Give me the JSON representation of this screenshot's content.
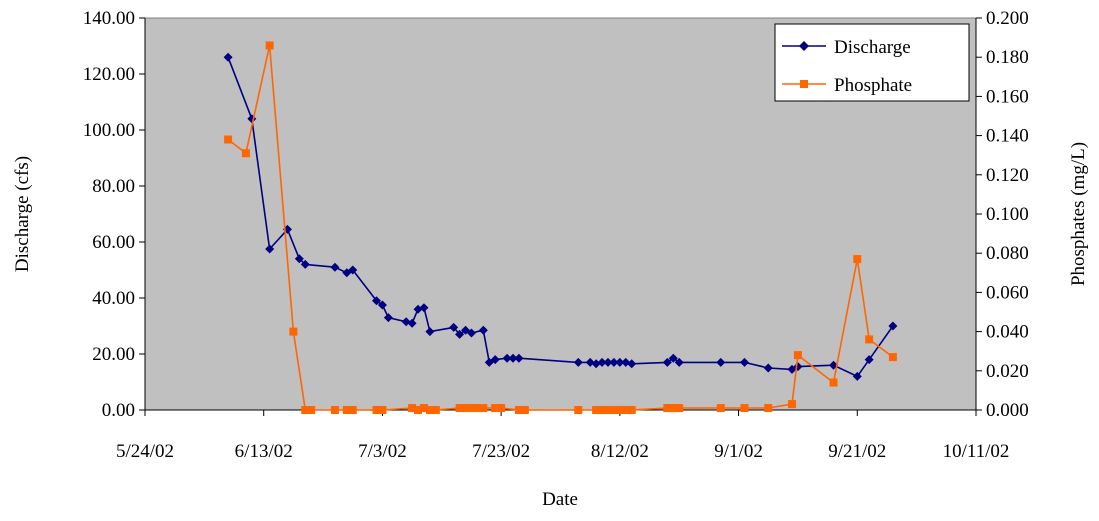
{
  "chart_data": {
    "type": "line",
    "title": "",
    "xlabel": "Date",
    "ylabel": "Discharge (cfs)",
    "y2label": "Phosphates (mg/L)",
    "x_ticks": [
      "5/24/02",
      "6/13/02",
      "7/3/02",
      "7/23/02",
      "8/12/02",
      "9/1/02",
      "9/21/02",
      "10/11/02"
    ],
    "xlim": [
      "2002-05-24",
      "2002-10-11"
    ],
    "ylim": [
      0,
      140
    ],
    "y_ticks": [
      "0.00",
      "20.00",
      "40.00",
      "60.00",
      "80.00",
      "100.00",
      "120.00",
      "140.00"
    ],
    "y2lim": [
      0,
      0.2
    ],
    "y2_ticks": [
      "0.000",
      "0.020",
      "0.040",
      "0.060",
      "0.080",
      "0.100",
      "0.120",
      "0.140",
      "0.160",
      "0.180",
      "0.200"
    ],
    "plot_background": "#c0c0c0",
    "grid": false,
    "legend_position": "top-right",
    "series": [
      {
        "name": "Discharge",
        "axis": "left",
        "color": "#000080",
        "marker": "diamond",
        "points": [
          [
            "2002-06-07",
            126.0
          ],
          [
            "2002-06-11",
            104.0
          ],
          [
            "2002-06-14",
            57.5
          ],
          [
            "2002-06-17",
            64.5
          ],
          [
            "2002-06-19",
            54.0
          ],
          [
            "2002-06-20",
            52.0
          ],
          [
            "2002-06-25",
            51.0
          ],
          [
            "2002-06-27",
            49.0
          ],
          [
            "2002-06-28",
            50.0
          ],
          [
            "2002-07-02",
            39.0
          ],
          [
            "2002-07-03",
            37.5
          ],
          [
            "2002-07-04",
            33.0
          ],
          [
            "2002-07-07",
            31.5
          ],
          [
            "2002-07-08",
            31.0
          ],
          [
            "2002-07-09",
            36.0
          ],
          [
            "2002-07-10",
            36.5
          ],
          [
            "2002-07-11",
            28.0
          ],
          [
            "2002-07-15",
            29.5
          ],
          [
            "2002-07-16",
            27.0
          ],
          [
            "2002-07-17",
            28.5
          ],
          [
            "2002-07-18",
            27.5
          ],
          [
            "2002-07-20",
            28.5
          ],
          [
            "2002-07-21",
            17.0
          ],
          [
            "2002-07-22",
            18.0
          ],
          [
            "2002-07-24",
            18.5
          ],
          [
            "2002-07-25",
            18.5
          ],
          [
            "2002-07-26",
            18.5
          ],
          [
            "2002-08-05",
            17.0
          ],
          [
            "2002-08-07",
            17.0
          ],
          [
            "2002-08-08",
            16.5
          ],
          [
            "2002-08-09",
            17.0
          ],
          [
            "2002-08-10",
            17.0
          ],
          [
            "2002-08-11",
            17.0
          ],
          [
            "2002-08-12",
            17.0
          ],
          [
            "2002-08-13",
            17.0
          ],
          [
            "2002-08-14",
            16.5
          ],
          [
            "2002-08-20",
            17.0
          ],
          [
            "2002-08-21",
            18.5
          ],
          [
            "2002-08-22",
            17.0
          ],
          [
            "2002-08-29",
            17.0
          ],
          [
            "2002-09-02",
            17.0
          ],
          [
            "2002-09-06",
            15.0
          ],
          [
            "2002-09-10",
            14.5
          ],
          [
            "2002-09-11",
            15.5
          ],
          [
            "2002-09-17",
            16.0
          ],
          [
            "2002-09-21",
            12.0
          ],
          [
            "2002-09-23",
            18.0
          ],
          [
            "2002-09-27",
            30.0
          ]
        ]
      },
      {
        "name": "Phosphate",
        "axis": "right",
        "color": "#ff6600",
        "marker": "square",
        "points": [
          [
            "2002-06-07",
            0.138
          ],
          [
            "2002-06-10",
            0.131
          ],
          [
            "2002-06-14",
            0.186
          ],
          [
            "2002-06-18",
            0.04
          ],
          [
            "2002-06-20",
            0.0
          ],
          [
            "2002-06-21",
            0.0
          ],
          [
            "2002-06-25",
            0.0
          ],
          [
            "2002-06-27",
            0.0
          ],
          [
            "2002-06-28",
            0.0
          ],
          [
            "2002-07-02",
            0.0
          ],
          [
            "2002-07-03",
            0.0
          ],
          [
            "2002-07-08",
            0.001
          ],
          [
            "2002-07-09",
            0.0
          ],
          [
            "2002-07-10",
            0.001
          ],
          [
            "2002-07-11",
            0.0
          ],
          [
            "2002-07-12",
            0.0
          ],
          [
            "2002-07-16",
            0.001
          ],
          [
            "2002-07-17",
            0.001
          ],
          [
            "2002-07-18",
            0.001
          ],
          [
            "2002-07-19",
            0.001
          ],
          [
            "2002-07-20",
            0.001
          ],
          [
            "2002-07-22",
            0.001
          ],
          [
            "2002-07-23",
            0.001
          ],
          [
            "2002-07-26",
            0.0
          ],
          [
            "2002-07-27",
            0.0
          ],
          [
            "2002-08-05",
            0.0
          ],
          [
            "2002-08-08",
            0.0
          ],
          [
            "2002-08-09",
            0.0
          ],
          [
            "2002-08-10",
            0.0
          ],
          [
            "2002-08-11",
            0.0
          ],
          [
            "2002-08-12",
            0.0
          ],
          [
            "2002-08-13",
            0.0
          ],
          [
            "2002-08-14",
            0.0
          ],
          [
            "2002-08-20",
            0.001
          ],
          [
            "2002-08-21",
            0.001
          ],
          [
            "2002-08-22",
            0.001
          ],
          [
            "2002-08-29",
            0.001
          ],
          [
            "2002-09-02",
            0.001
          ],
          [
            "2002-09-06",
            0.001
          ],
          [
            "2002-09-10",
            0.003
          ],
          [
            "2002-09-11",
            0.028
          ],
          [
            "2002-09-17",
            0.014
          ],
          [
            "2002-09-21",
            0.077
          ],
          [
            "2002-09-23",
            0.036
          ],
          [
            "2002-09-27",
            0.027
          ]
        ]
      }
    ]
  }
}
